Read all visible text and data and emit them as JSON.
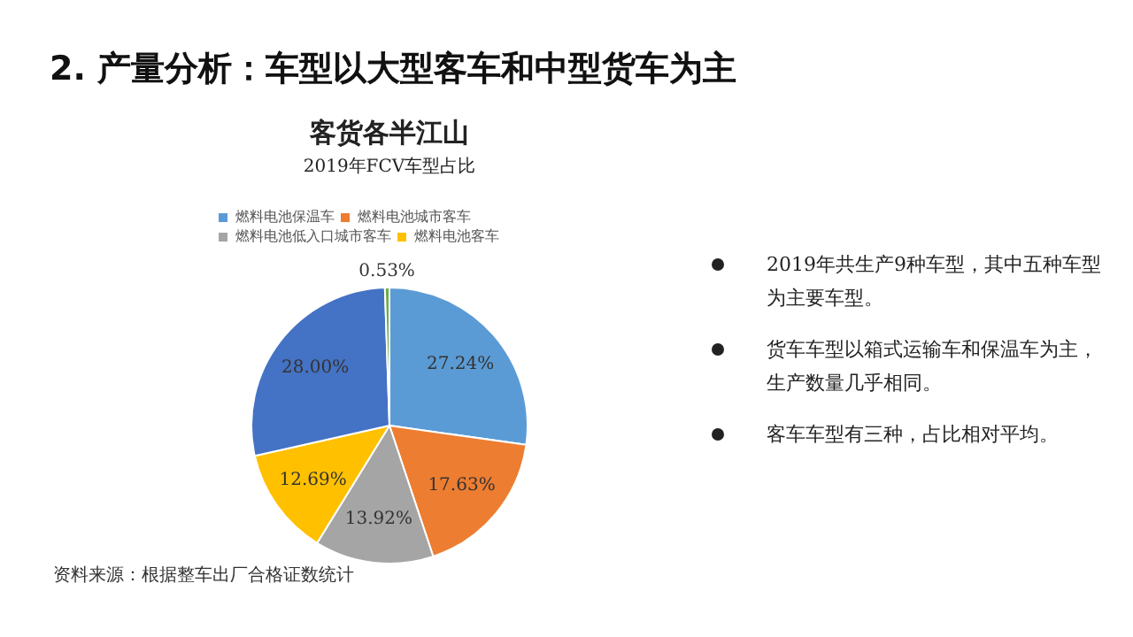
{
  "chart_data": {
    "type": "pie",
    "title": "2. 产量分析：车型以大型客车和中型货车为主",
    "subtitle": "客货各半江山",
    "categories": [
      "燃料电池保温车",
      "燃料电池城市客车",
      "燃料电池低入口城市客车",
      "燃料电池客车",
      null,
      null
    ],
    "values": [
      27.24,
      17.63,
      13.92,
      12.69,
      28.0,
      0.53
    ],
    "colors": [
      "#5b9bd5",
      "#ed7d31",
      "#a5a5a5",
      "#ffc000",
      "#4472c4",
      "#70ad47"
    ],
    "value_labels": [
      "27.24%",
      "17.63%",
      "13.92%",
      "12.69%",
      "28.00%",
      "0.53%"
    ],
    "legend": "top left",
    "annotations": [
      "2019年FCV车型占比",
      "2019年共生产9种车型，其中五种车型为主要车型。",
      "货车车型以箱式运输车和保温车为主，生产数量几乎相同。",
      "客车车型有三种，占比相对平均。",
      "资料来源：根据整车出厂合格证数统计"
    ]
  }
}
